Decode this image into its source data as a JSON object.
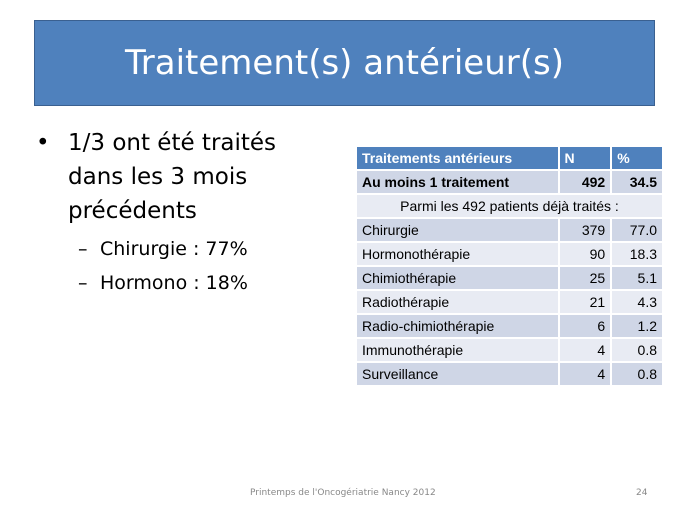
{
  "slide": {
    "title": "Traitement(s) antérieur(s)"
  },
  "bullets": {
    "main": "1/3 ont été traités dans les 3 mois précédents",
    "sub": [
      "Chirurgie  : 77%",
      "Hormono : 18%"
    ]
  },
  "table": {
    "headers": [
      "Traitements antérieurs",
      "N",
      "%"
    ],
    "summary": {
      "label": "Au moins 1 traitement",
      "n": "492",
      "pct": "34.5"
    },
    "subheading": "Parmi les 492 patients déjà traités :",
    "rows": [
      {
        "label": "Chirurgie",
        "n": "379",
        "pct": "77.0"
      },
      {
        "label": "Hormonothérapie",
        "n": "90",
        "pct": "18.3"
      },
      {
        "label": "Chimiothérapie",
        "n": "25",
        "pct": "5.1"
      },
      {
        "label": "Radiothérapie",
        "n": "21",
        "pct": "4.3"
      },
      {
        "label": "Radio-chimiothérapie",
        "n": "6",
        "pct": "1.2"
      },
      {
        "label": "Immunothérapie",
        "n": "4",
        "pct": "0.8"
      },
      {
        "label": "Surveillance",
        "n": "4",
        "pct": "0.8"
      }
    ]
  },
  "footer": {
    "text": "Printemps de l'Oncogériatrie Nancy 2012",
    "page": "24"
  },
  "colors": {
    "title_bg": "#4f81bd",
    "header_bg": "#4f81bd",
    "row_light": "#e8ebf3",
    "row_dark": "#cfd6e6"
  }
}
